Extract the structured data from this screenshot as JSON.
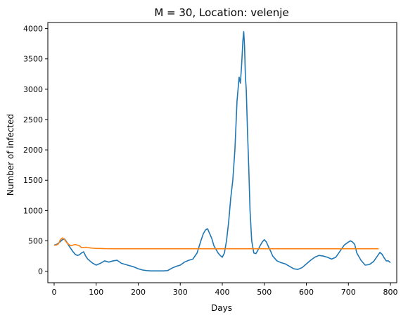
{
  "chart_data": {
    "type": "line",
    "title": "M = 30, Location: velenje",
    "xlabel": "Days",
    "ylabel": "Number of infected",
    "xlim": [
      -15,
      815
    ],
    "ylim": [
      -190,
      4100
    ],
    "xticks": [
      0,
      100,
      200,
      300,
      400,
      500,
      600,
      700,
      800
    ],
    "yticks": [
      0,
      500,
      1000,
      1500,
      2000,
      2500,
      3000,
      3500,
      4000
    ],
    "grid": false,
    "legend": "none",
    "series": [
      {
        "color": "#1f77b4",
        "x": [
          0,
          5,
          10,
          15,
          20,
          25,
          30,
          35,
          40,
          45,
          50,
          55,
          60,
          65,
          70,
          75,
          80,
          85,
          90,
          95,
          100,
          110,
          120,
          130,
          140,
          150,
          160,
          170,
          180,
          190,
          200,
          210,
          220,
          230,
          240,
          250,
          260,
          270,
          280,
          290,
          300,
          310,
          320,
          330,
          340,
          350,
          355,
          360,
          365,
          370,
          375,
          380,
          385,
          390,
          395,
          400,
          405,
          410,
          415,
          420,
          425,
          430,
          435,
          440,
          443,
          446,
          449,
          451,
          453,
          455,
          457,
          460,
          463,
          466,
          470,
          475,
          480,
          485,
          490,
          495,
          500,
          505,
          510,
          515,
          520,
          530,
          540,
          550,
          560,
          570,
          580,
          590,
          600,
          610,
          620,
          630,
          640,
          650,
          660,
          670,
          680,
          690,
          700,
          705,
          710,
          715,
          720,
          730,
          740,
          750,
          760,
          770,
          775,
          780,
          785,
          790,
          795,
          800
        ],
        "y": [
          430,
          440,
          460,
          490,
          520,
          530,
          480,
          420,
          370,
          320,
          280,
          260,
          270,
          300,
          320,
          250,
          200,
          170,
          140,
          120,
          100,
          130,
          170,
          150,
          170,
          180,
          130,
          110,
          90,
          70,
          40,
          20,
          10,
          5,
          5,
          5,
          5,
          10,
          50,
          80,
          100,
          150,
          180,
          200,
          300,
          520,
          620,
          680,
          700,
          620,
          540,
          420,
          360,
          300,
          260,
          230,
          300,
          500,
          800,
          1200,
          1500,
          2000,
          2800,
          3200,
          3100,
          3400,
          3800,
          3950,
          3700,
          3200,
          3000,
          2300,
          1700,
          1000,
          500,
          300,
          290,
          350,
          420,
          480,
          520,
          480,
          400,
          330,
          250,
          170,
          140,
          120,
          80,
          40,
          30,
          60,
          120,
          180,
          230,
          260,
          250,
          230,
          200,
          230,
          330,
          430,
          480,
          500,
          480,
          440,
          300,
          180,
          100,
          110,
          160,
          260,
          310,
          280,
          220,
          170,
          170,
          140
        ]
      },
      {
        "color": "#ff7f0e",
        "x": [
          0,
          5,
          10,
          15,
          20,
          25,
          30,
          35,
          40,
          45,
          50,
          55,
          60,
          65,
          70,
          75,
          80,
          85,
          90,
          95,
          100,
          110,
          120,
          130,
          140,
          150,
          200,
          300,
          400,
          500,
          600,
          700,
          772
        ],
        "y": [
          430,
          430,
          450,
          520,
          550,
          520,
          470,
          440,
          420,
          430,
          440,
          430,
          420,
          390,
          390,
          395,
          390,
          385,
          380,
          378,
          375,
          375,
          372,
          371,
          370,
          370,
          370,
          370,
          370,
          370,
          370,
          370,
          370
        ]
      }
    ]
  }
}
